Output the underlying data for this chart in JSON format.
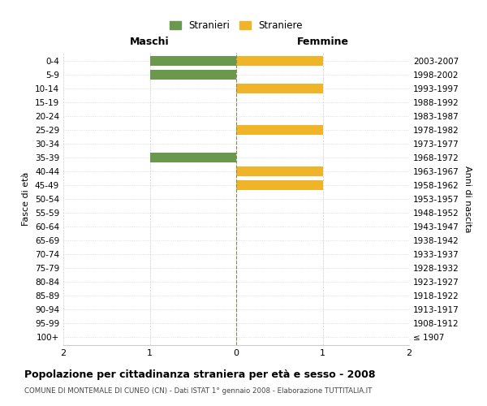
{
  "age_groups": [
    "100+",
    "95-99",
    "90-94",
    "85-89",
    "80-84",
    "75-79",
    "70-74",
    "65-69",
    "60-64",
    "55-59",
    "50-54",
    "45-49",
    "40-44",
    "35-39",
    "30-34",
    "25-29",
    "20-24",
    "15-19",
    "10-14",
    "5-9",
    "0-4"
  ],
  "birth_years": [
    "≤ 1907",
    "1908-1912",
    "1913-1917",
    "1918-1922",
    "1923-1927",
    "1928-1932",
    "1933-1937",
    "1938-1942",
    "1943-1947",
    "1948-1952",
    "1953-1957",
    "1958-1962",
    "1963-1967",
    "1968-1972",
    "1973-1977",
    "1978-1982",
    "1983-1987",
    "1988-1992",
    "1993-1997",
    "1998-2002",
    "2003-2007"
  ],
  "maschi": [
    0,
    0,
    0,
    0,
    0,
    0,
    0,
    0,
    0,
    0,
    0,
    0,
    0,
    -1,
    0,
    0,
    0,
    0,
    0,
    -1,
    -1
  ],
  "femmine": [
    0,
    0,
    0,
    0,
    0,
    0,
    0,
    0,
    0,
    0,
    0,
    1,
    1,
    0,
    0,
    1,
    0,
    0,
    1,
    0,
    1
  ],
  "maschi_color": "#6a994e",
  "femmine_color": "#f0b429",
  "title": "Popolazione per cittadinanza straniera per età e sesso - 2008",
  "subtitle": "COMUNE DI MONTEMALE DI CUNEO (CN) - Dati ISTAT 1° gennaio 2008 - Elaborazione TUTTITALIA.IT",
  "xlabel_left": "Maschi",
  "xlabel_right": "Femmine",
  "ylabel_left": "Fasce di età",
  "ylabel_right": "Anni di nascita",
  "legend_maschi": "Stranieri",
  "legend_femmine": "Straniere",
  "xlim": [
    -2,
    2
  ],
  "xticks": [
    -2,
    -1,
    0,
    1,
    2
  ],
  "xticklabels": [
    "2",
    "1",
    "0",
    "1",
    "2"
  ],
  "bg_color": "#ffffff",
  "grid_color": "#cccccc",
  "bar_height": 0.7
}
